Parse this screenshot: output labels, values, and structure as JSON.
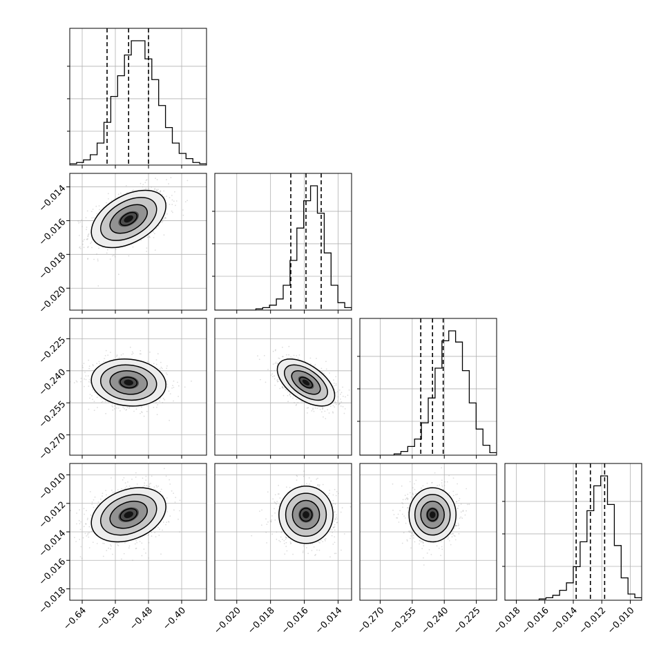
{
  "chart_data": {
    "type": "scatter",
    "subtype": "corner-plot",
    "grid": true,
    "colors": {
      "line": "#000000",
      "grid": "#b0b0b0",
      "points": "#9a9a9a",
      "density_fills": [
        "#ededed",
        "#c4c4c4",
        "#8f8f8f",
        "#4a4a4a",
        "#111111"
      ]
    },
    "parameters": [
      {
        "mean": -0.528,
        "sd": 0.045,
        "quantiles": [
          -0.58,
          -0.528,
          -0.48
        ],
        "range": [
          -0.67,
          -0.34
        ],
        "ticks": [
          -0.64,
          -0.56,
          -0.48,
          -0.4
        ],
        "tick_labels": [
          "−0.64",
          "−0.56",
          "−0.48",
          "−0.40"
        ]
      },
      {
        "mean": -0.0159,
        "sd": 0.00085,
        "quantiles": [
          -0.0168,
          -0.0159,
          -0.015
        ],
        "range": [
          -0.0213,
          -0.0132
        ],
        "ticks": [
          -0.02,
          -0.018,
          -0.016,
          -0.014
        ],
        "tick_labels": [
          "−0.020",
          "−0.018",
          "−0.016",
          "−0.014"
        ]
      },
      {
        "mean": -0.2455,
        "sd": 0.0055,
        "quantiles": [
          -0.251,
          -0.2455,
          -0.2405
        ],
        "range": [
          -0.2795,
          -0.2155
        ],
        "ticks": [
          -0.27,
          -0.255,
          -0.24,
          -0.225
        ],
        "tick_labels": [
          "−0.270",
          "−0.255",
          "−0.240",
          "−0.225"
        ]
      },
      {
        "mean": -0.0128,
        "sd": 0.00095,
        "quantiles": [
          -0.0138,
          -0.0128,
          -0.0118
        ],
        "range": [
          -0.0188,
          -0.0092
        ],
        "ticks": [
          -0.018,
          -0.016,
          -0.014,
          -0.012,
          -0.01
        ],
        "tick_labels": [
          "−0.018",
          "−0.016",
          "−0.014",
          "−0.012",
          "−0.010"
        ]
      }
    ],
    "correlations": [
      [
        1.0,
        0.45,
        -0.1,
        0.3
      ],
      [
        0.45,
        1.0,
        -0.55,
        0.0
      ],
      [
        -0.1,
        -0.55,
        1.0,
        0.0
      ],
      [
        0.3,
        0.0,
        0.0,
        1.0
      ]
    ],
    "histograms": [
      [
        1,
        2,
        4,
        8,
        17,
        33,
        53,
        69,
        85,
        96,
        96,
        82,
        66,
        46,
        29,
        17,
        9,
        5,
        2,
        1
      ],
      [
        0,
        0,
        0,
        0,
        0,
        0,
        1,
        2,
        4,
        9,
        20,
        40,
        66,
        88,
        100,
        78,
        46,
        20,
        6,
        2
      ],
      [
        0,
        0,
        0,
        0,
        0,
        1,
        3,
        7,
        13,
        26,
        46,
        70,
        92,
        100,
        91,
        68,
        42,
        21,
        8,
        2
      ],
      [
        0,
        0,
        0,
        0,
        0,
        1,
        2,
        4,
        8,
        14,
        27,
        47,
        72,
        92,
        100,
        77,
        44,
        18,
        5,
        2
      ]
    ]
  }
}
